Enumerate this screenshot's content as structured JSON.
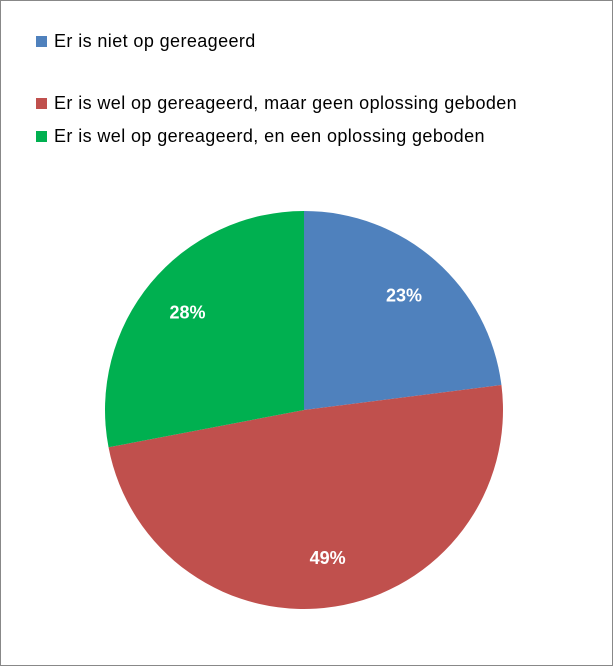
{
  "chart_data": {
    "type": "pie",
    "categories": [
      "Er is niet op gereageerd",
      "Er is wel op gereageerd, maar geen oplossing geboden",
      "Er is wel op gereageerd, en een oplossing geboden"
    ],
    "values": [
      23,
      49,
      28
    ],
    "value_labels": [
      "23%",
      "49%",
      "28%"
    ],
    "colors": [
      "#4f81bd",
      "#c0504d",
      "#00b050"
    ],
    "legend": "top-left"
  }
}
